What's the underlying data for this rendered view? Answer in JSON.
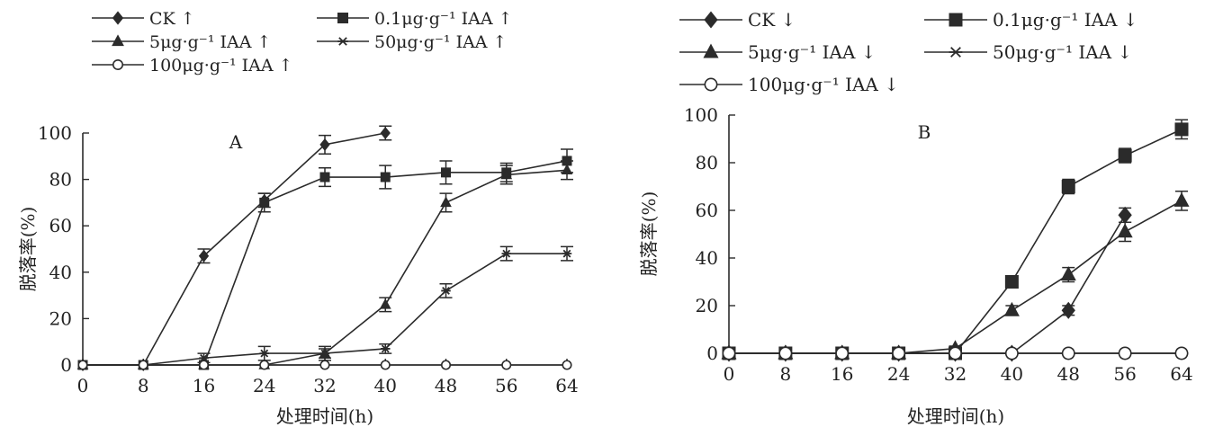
{
  "colors": {
    "ink": "#2b2b2b",
    "background": "#ffffff"
  },
  "chart_data": [
    {
      "type": "line",
      "panel_label": "A",
      "xlabel": "处理时间(h)",
      "ylabel": "脱落率(%)",
      "xlim": [
        0,
        64
      ],
      "ylim": [
        0,
        100
      ],
      "xticks": [
        0,
        8,
        16,
        24,
        32,
        40,
        48,
        56,
        64
      ],
      "yticks": [
        0,
        20,
        40,
        60,
        80,
        100
      ],
      "legend_columns": 2,
      "series": [
        {
          "name": "CK ↑",
          "marker": "diamond",
          "x": [
            0,
            8,
            16,
            24,
            32,
            40
          ],
          "y": [
            0,
            0,
            47,
            71,
            95,
            100
          ],
          "err": [
            0,
            0,
            3,
            3,
            4,
            3
          ]
        },
        {
          "name": "0.1μg·g⁻¹ IAA ↑",
          "marker": "square",
          "x": [
            0,
            8,
            16,
            24,
            32,
            40,
            48,
            56,
            64
          ],
          "y": [
            0,
            0,
            0,
            70,
            81,
            81,
            83,
            83,
            88
          ],
          "err": [
            0,
            0,
            0,
            4,
            4,
            5,
            5,
            4,
            5
          ]
        },
        {
          "name": "5μg·g⁻¹ IAA ↑",
          "marker": "triangle",
          "x": [
            0,
            8,
            16,
            24,
            32,
            40,
            48,
            56,
            64
          ],
          "y": [
            0,
            0,
            0,
            0,
            5,
            26,
            70,
            82,
            84
          ],
          "err": [
            0,
            0,
            0,
            0,
            2,
            3,
            4,
            4,
            4
          ]
        },
        {
          "name": "50μg·g⁻¹ IAA ↑",
          "marker": "star",
          "x": [
            0,
            8,
            16,
            24,
            32,
            40,
            48,
            56,
            64
          ],
          "y": [
            0,
            0,
            3,
            5,
            5,
            7,
            32,
            48,
            48
          ],
          "err": [
            0,
            0,
            2,
            3,
            3,
            2,
            3,
            3,
            3
          ]
        },
        {
          "name": "100μg·g⁻¹ IAA ↑",
          "marker": "circle",
          "x": [
            0,
            8,
            16,
            24,
            32,
            40,
            48,
            56,
            64
          ],
          "y": [
            0,
            0,
            0,
            0,
            0,
            0,
            0,
            0,
            0
          ],
          "err": [
            0,
            0,
            0,
            0,
            0,
            0,
            0,
            0,
            0
          ]
        }
      ]
    },
    {
      "type": "line",
      "panel_label": "B",
      "xlabel": "处理时间(h)",
      "ylabel": "脱落率(%)",
      "xlim": [
        0,
        64
      ],
      "ylim": [
        0,
        100
      ],
      "xticks": [
        0,
        8,
        16,
        24,
        32,
        40,
        48,
        56,
        64
      ],
      "yticks": [
        0,
        20,
        40,
        60,
        80,
        100
      ],
      "legend_columns": 2,
      "series": [
        {
          "name": "CK ↓",
          "marker": "diamond",
          "x": [
            0,
            8,
            16,
            24,
            32,
            40,
            48,
            56
          ],
          "y": [
            0,
            0,
            0,
            0,
            0,
            0,
            18,
            58
          ],
          "err": [
            0,
            0,
            0,
            0,
            0,
            0,
            2,
            3
          ]
        },
        {
          "name": "0.1μg·g⁻¹ IAA ↓",
          "marker": "square",
          "x": [
            0,
            8,
            16,
            24,
            32,
            40,
            48,
            56,
            64
          ],
          "y": [
            0,
            0,
            0,
            0,
            0,
            30,
            70,
            83,
            94
          ],
          "err": [
            0,
            0,
            0,
            0,
            0,
            2,
            3,
            3,
            4
          ]
        },
        {
          "name": "5μg·g⁻¹ IAA ↓",
          "marker": "triangle",
          "x": [
            0,
            8,
            16,
            24,
            32,
            40,
            48,
            56,
            64
          ],
          "y": [
            0,
            0,
            0,
            0,
            2,
            18,
            33,
            51,
            64
          ],
          "err": [
            0,
            0,
            0,
            0,
            1,
            2,
            3,
            4,
            4
          ]
        },
        {
          "name": "50μg·g⁻¹ IAA ↓",
          "marker": "star",
          "x": [
            0,
            8,
            16,
            24,
            32,
            40,
            48,
            56,
            64
          ],
          "y": [
            0,
            0,
            0,
            0,
            0,
            0,
            0,
            0,
            0
          ],
          "err": [
            0,
            0,
            0,
            0,
            0,
            0,
            0,
            0,
            0
          ]
        },
        {
          "name": "100μg·g⁻¹ IAA ↓",
          "marker": "circle",
          "x": [
            0,
            8,
            16,
            24,
            32,
            40,
            48,
            56,
            64
          ],
          "y": [
            0,
            0,
            0,
            0,
            0,
            0,
            0,
            0,
            0
          ],
          "err": [
            0,
            0,
            0,
            0,
            0,
            0,
            0,
            0,
            0
          ]
        }
      ]
    }
  ]
}
